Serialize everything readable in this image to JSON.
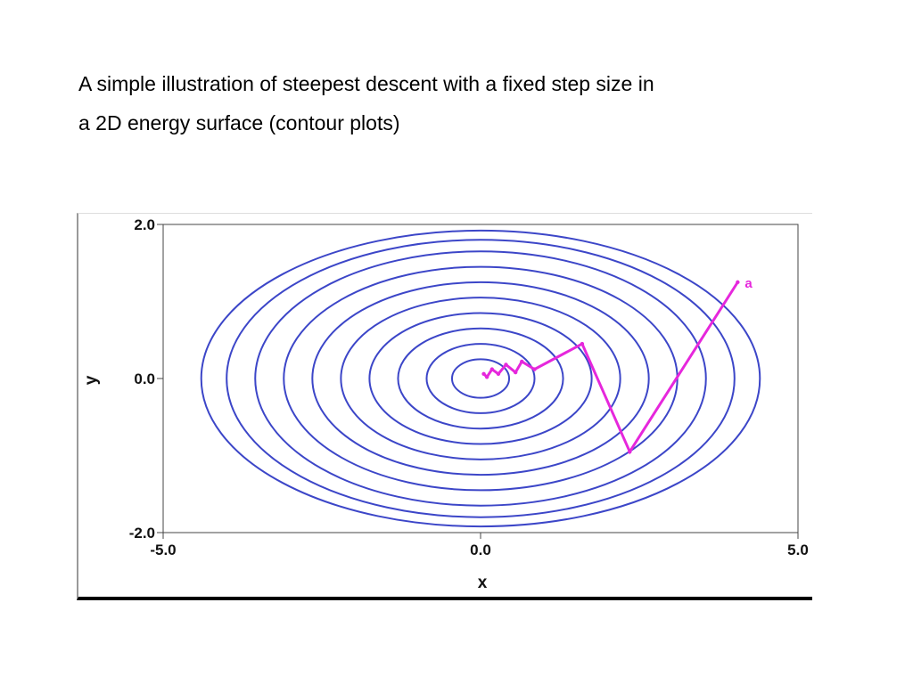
{
  "caption": {
    "line1": "A simple illustration of steepest descent with a fixed step size in",
    "line2": "a 2D energy surface (contour plots)"
  },
  "chart_data": {
    "type": "line",
    "title": "",
    "xlabel": "x",
    "ylabel": "y",
    "xlim": [
      -5.0,
      5.0
    ],
    "ylim": [
      -2.0,
      2.0
    ],
    "x_ticks": [
      "-5.0",
      "0.0",
      "5.0"
    ],
    "y_ticks": [
      "2.0",
      "0.0",
      "-2.0"
    ],
    "grid": false,
    "contours": {
      "center": [
        0.0,
        0.0
      ],
      "semi_axes": [
        [
          0.45,
          0.25
        ],
        [
          0.85,
          0.45
        ],
        [
          1.3,
          0.65
        ],
        [
          1.75,
          0.85
        ],
        [
          2.2,
          1.05
        ],
        [
          2.65,
          1.25
        ],
        [
          3.1,
          1.45
        ],
        [
          3.55,
          1.65
        ],
        [
          4.0,
          1.8
        ],
        [
          4.4,
          1.92
        ]
      ],
      "color": "#3c46c8"
    },
    "path": {
      "color": "#e627dc",
      "x": [
        4.05,
        2.35,
        1.6,
        0.85,
        0.65,
        0.55,
        0.4,
        0.28,
        0.18,
        0.1,
        0.05
      ],
      "y": [
        1.25,
        -0.95,
        0.45,
        0.12,
        0.22,
        0.08,
        0.18,
        0.06,
        0.12,
        0.02,
        0.06
      ],
      "start_label": "a"
    }
  }
}
